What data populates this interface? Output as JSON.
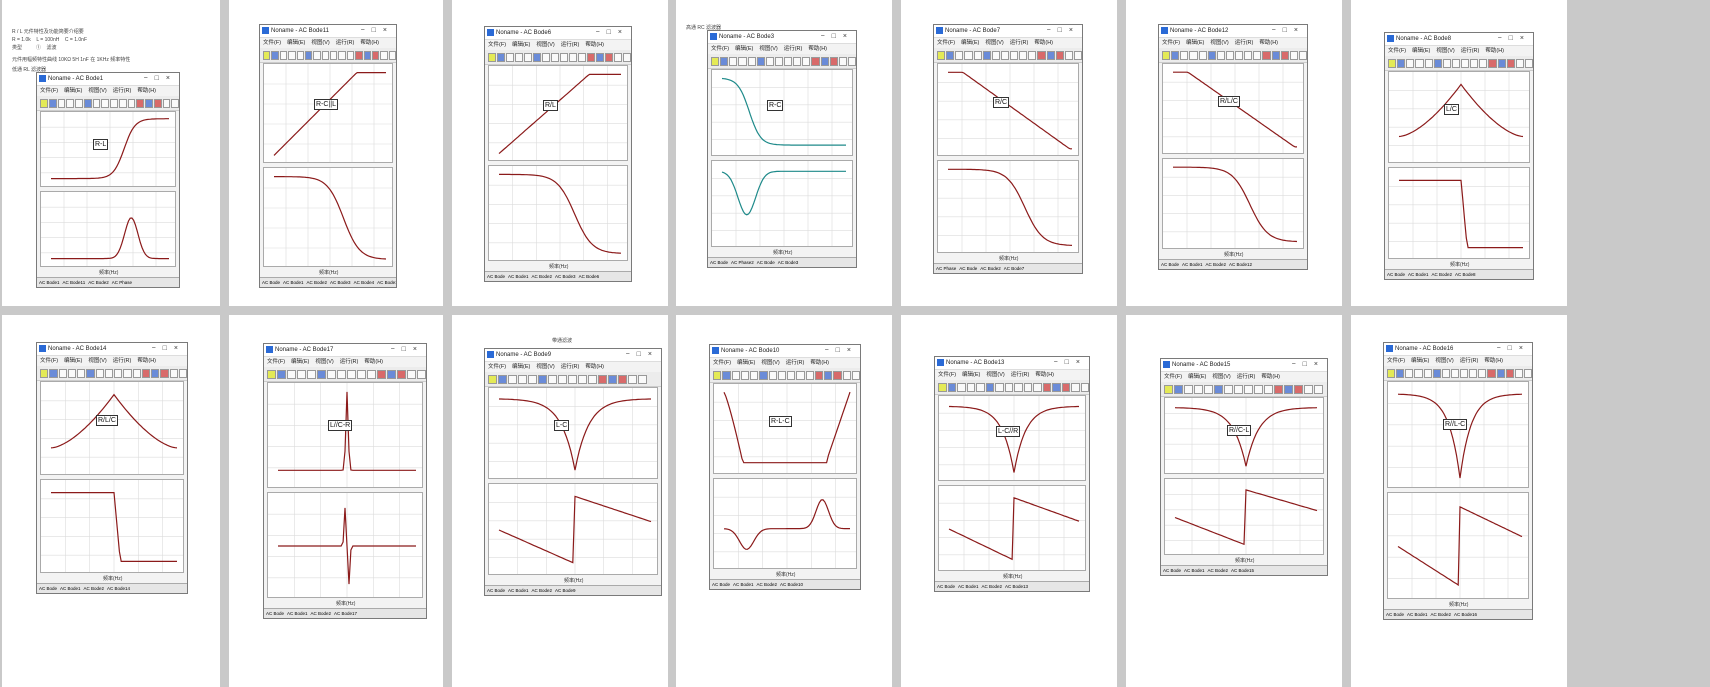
{
  "notes": {
    "p1_l1": "R / L 元件特性及功能简要介绍要",
    "p1_l2": "R = 1.0k    L = 100nH    C = 1.0nF",
    "p1_l3": "类型          ①    滤波",
    "p1_l4": "元件用幅频特性曲线 10KΩ 5H 1nF 在 1KHz 频率特性",
    "p1_l5": "低通 RL 滤波器",
    "p4_l1": "高通 RC 滤波器",
    "p11_l1": "带通滤波"
  },
  "menu": [
    "文件(F)",
    "编辑(E)",
    "视图(V)",
    "运行(R)",
    "帮助(H)"
  ],
  "x_axis_label": "频率(Hz)",
  "windows": [
    {
      "title": "Noname - AC Bode1",
      "label": "R-L",
      "tabs": [
        "AC Bode1",
        "AC Bode11",
        "AC Bode2",
        "AC Phase"
      ]
    },
    {
      "title": "Noname - AC Bode11",
      "label": "R-C||L",
      "tabs": [
        "AC Bode",
        "AC Bode1",
        "AC Bode2",
        "AC Bode3",
        "AC Bode4",
        "AC Bode11"
      ]
    },
    {
      "title": "Noname - AC Bode6",
      "label": "R/L",
      "tabs": [
        "AC Bode",
        "AC Bode1",
        "AC Bode2",
        "AC Bode3",
        "AC Bode6"
      ]
    },
    {
      "title": "Noname - AC Bode3",
      "label": "R-C",
      "tabs": [
        "AC Bode",
        "AC Phase2",
        "AC Bode",
        "AC Bode3"
      ]
    },
    {
      "title": "Noname - AC Bode7",
      "label": "R/C",
      "tabs": [
        "AC Phase",
        "AC Bode",
        "AC Bode2",
        "AC Bode7"
      ]
    },
    {
      "title": "Noname - AC Bode12",
      "label": "R/L/C",
      "tabs": [
        "AC Bode",
        "AC Bode1",
        "AC Bode2",
        "AC Bode12"
      ]
    },
    {
      "title": "Noname - AC Bode8",
      "label": "L/C",
      "tabs": [
        "AC Bode",
        "AC Bode1",
        "AC Bode2",
        "AC Bode8"
      ]
    },
    {
      "title": "Noname - AC Bode14",
      "label": "R/L/C",
      "tabs": [
        "AC Bode",
        "AC Bode1",
        "AC Bode2",
        "AC Bode14"
      ]
    },
    {
      "title": "Noname - AC Bode17",
      "label": "L//C-R",
      "tabs": [
        "AC Bode",
        "AC Bode1",
        "AC Bode2",
        "AC Bode17"
      ]
    },
    {
      "title": "Noname - AC Bode9",
      "label": "L-C",
      "tabs": [
        "AC Bode",
        "AC Bode1",
        "AC Bode2",
        "AC Bode9"
      ]
    },
    {
      "title": "Noname - AC Bode10",
      "label": "R-L-C",
      "tabs": [
        "AC Bode",
        "AC Bode1",
        "AC Bode2",
        "AC Bode10"
      ]
    },
    {
      "title": "Noname - AC Bode13",
      "label": "L-C//R",
      "tabs": [
        "AC Bode",
        "AC Bode1",
        "AC Bode2",
        "AC Bode13"
      ]
    },
    {
      "title": "Noname - AC Bode15",
      "label": "R//C-L",
      "tabs": [
        "AC Bode",
        "AC Bode1",
        "AC Bode2",
        "AC Bode15"
      ]
    },
    {
      "title": "Noname - AC Bode16",
      "label": "R//L-C",
      "tabs": [
        "AC Bode",
        "AC Bode1",
        "AC Bode2",
        "AC Bode16"
      ]
    }
  ],
  "chart_data": [
    {
      "type": "line",
      "label": "R-L",
      "magnitude_shape": "highpass",
      "phase_shape": "bump"
    },
    {
      "type": "line",
      "label": "R-C||L",
      "magnitude_shape": "rising-plateau",
      "phase_shape": "falling"
    },
    {
      "type": "line",
      "label": "R/L",
      "magnitude_shape": "rising-plateau",
      "phase_shape": "falling"
    },
    {
      "type": "line",
      "label": "R-C",
      "magnitude_shape": "lowpass",
      "phase_shape": "dip"
    },
    {
      "type": "line",
      "label": "R/C",
      "magnitude_shape": "plateau-falling",
      "phase_shape": "falling"
    },
    {
      "type": "line",
      "label": "R/L/C",
      "magnitude_shape": "plateau-falling",
      "phase_shape": "falling"
    },
    {
      "type": "line",
      "label": "L/C",
      "magnitude_shape": "resonant-peak",
      "phase_shape": "step-down"
    },
    {
      "type": "line",
      "label": "R/L/C",
      "magnitude_shape": "resonant-peak",
      "phase_shape": "step-down"
    },
    {
      "type": "line",
      "label": "L//C-R",
      "magnitude_shape": "sharp-spike",
      "phase_shape": "spike"
    },
    {
      "type": "line",
      "label": "L-C",
      "magnitude_shape": "notch",
      "phase_shape": "jump"
    },
    {
      "type": "line",
      "label": "R-L-C",
      "magnitude_shape": "bandstop-wide",
      "phase_shape": "wave"
    },
    {
      "type": "line",
      "label": "L-C//R",
      "magnitude_shape": "notch",
      "phase_shape": "jump"
    },
    {
      "type": "line",
      "label": "R//C-L",
      "magnitude_shape": "notch",
      "phase_shape": "jump"
    },
    {
      "type": "line",
      "label": "R//L-C",
      "magnitude_shape": "notch",
      "phase_shape": "jump"
    }
  ],
  "colors": {
    "trace": "#8b1a1a",
    "trace_alt": "#1e8a8a",
    "grid": "#dcdcdc"
  }
}
